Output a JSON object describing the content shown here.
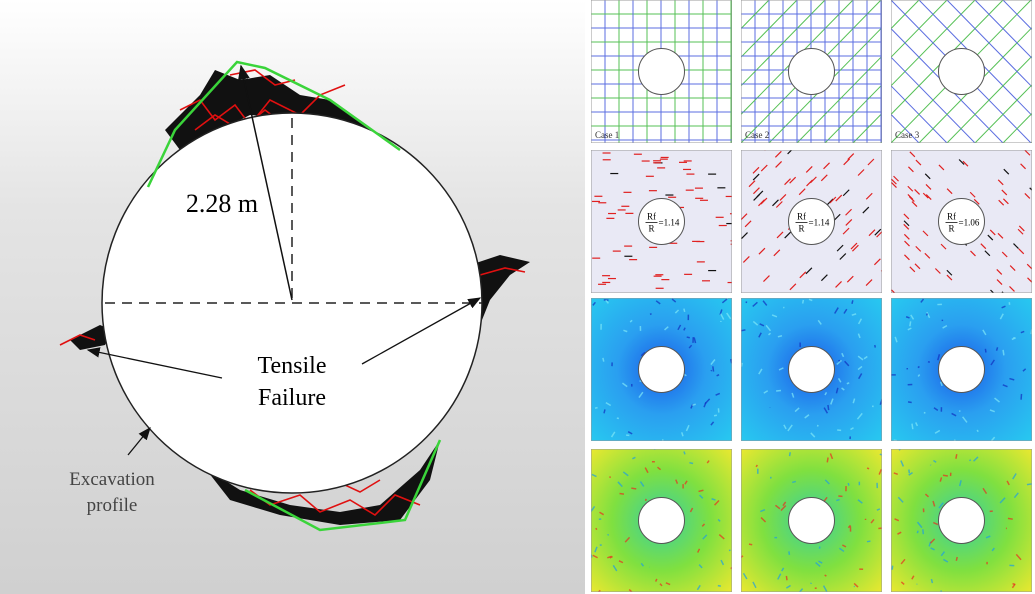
{
  "figure": {
    "radius_label": "2.28 m",
    "failure_label": [
      "Tensile",
      "Failure"
    ],
    "profile_label": [
      "Excavation",
      "profile"
    ]
  },
  "panels": {
    "cases": [
      "Case 1",
      "Case 2",
      "Case 3"
    ],
    "ratios": [
      {
        "numerator": "Rf",
        "denominator": "R",
        "value": "=1.14"
      },
      {
        "numerator": "Rf",
        "denominator": "R",
        "value": "=1.14"
      },
      {
        "numerator": "Rf",
        "denominator": "R",
        "value": "=1.06"
      }
    ]
  }
}
